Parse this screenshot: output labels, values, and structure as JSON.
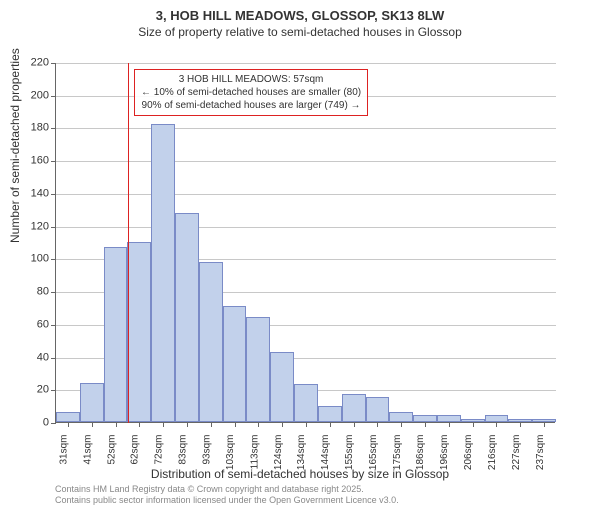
{
  "title_main": "3, HOB HILL MEADOWS, GLOSSOP, SK13 8LW",
  "title_sub": "Size of property relative to semi-detached houses in Glossop",
  "y_axis_label": "Number of semi-detached properties",
  "x_axis_label": "Distribution of semi-detached houses by size in Glossop",
  "chart": {
    "type": "histogram",
    "ylim": [
      0,
      220
    ],
    "ytick_step": 20,
    "yticks": [
      0,
      20,
      40,
      60,
      80,
      100,
      120,
      140,
      160,
      180,
      200,
      220
    ],
    "x_labels": [
      "31sqm",
      "41sqm",
      "52sqm",
      "62sqm",
      "72sqm",
      "83sqm",
      "93sqm",
      "103sqm",
      "113sqm",
      "124sqm",
      "134sqm",
      "144sqm",
      "155sqm",
      "165sqm",
      "175sqm",
      "186sqm",
      "196sqm",
      "206sqm",
      "216sqm",
      "227sqm",
      "237sqm"
    ],
    "values": [
      6,
      24,
      107,
      110,
      182,
      128,
      98,
      71,
      64,
      43,
      23,
      10,
      17,
      15,
      6,
      4,
      4,
      2,
      4,
      2,
      2
    ],
    "bar_color": "#c2d1eb",
    "bar_border_color": "#7a8bc7",
    "grid_color": "#c8c8c8",
    "background_color": "#ffffff",
    "marker_value_sqm": 57,
    "marker_line_color": "#d22",
    "annotation_lines": [
      "3 HOB HILL MEADOWS: 57sqm",
      "← 10% of semi-detached houses are smaller (80)",
      "90% of semi-detached houses are larger (749) →"
    ]
  },
  "footer": {
    "line1": "Contains HM Land Registry data © Crown copyright and database right 2025.",
    "line2": "Contains public sector information licensed under the Open Government Licence v3.0."
  }
}
